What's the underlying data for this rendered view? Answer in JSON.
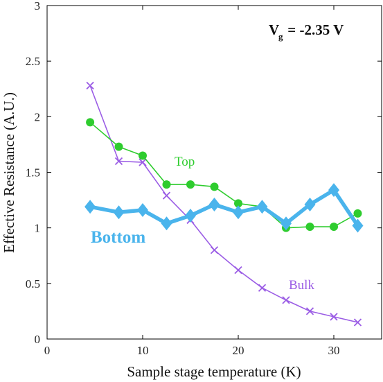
{
  "chart_data": {
    "type": "line",
    "xlabel": "Sample stage temperature (K)",
    "ylabel": "Effective Resistance (A.U.)",
    "xlim": [
      0,
      35
    ],
    "ylim": [
      0,
      3
    ],
    "xticks": [
      0,
      10,
      20,
      30
    ],
    "yticks": [
      0,
      0.5,
      1,
      1.5,
      2,
      2.5,
      3
    ],
    "xtick_labels": [
      "0",
      "10",
      "20",
      "30"
    ],
    "ytick_labels": [
      "0",
      "0.5",
      "1",
      "1.5",
      "2",
      "2.5",
      "3"
    ],
    "grid": false,
    "annotation": {
      "main": "V",
      "subscript": "g",
      "value": " = -2.35 V"
    },
    "series": [
      {
        "name": "Top",
        "color": "#2ecc2e",
        "marker": "circle",
        "x": [
          4.5,
          7.5,
          10,
          12.5,
          15,
          17.5,
          20,
          22.5,
          25,
          27.5,
          30,
          32.5
        ],
        "y": [
          1.95,
          1.73,
          1.65,
          1.39,
          1.39,
          1.37,
          1.22,
          1.19,
          1.0,
          1.01,
          1.01,
          1.13
        ]
      },
      {
        "name": "Bottom",
        "color": "#4ab4ec",
        "marker": "diamond",
        "x": [
          4.5,
          7.5,
          10,
          12.5,
          15,
          17.5,
          20,
          22.5,
          25,
          27.5,
          30,
          32.5
        ],
        "y": [
          1.19,
          1.14,
          1.16,
          1.04,
          1.11,
          1.21,
          1.14,
          1.19,
          1.04,
          1.21,
          1.34,
          1.02
        ]
      },
      {
        "name": "Bulk",
        "color": "#9b5de5",
        "marker": "x",
        "x": [
          4.5,
          7.5,
          10,
          12.5,
          15,
          17.5,
          20,
          22.5,
          25,
          27.5,
          30,
          32.5
        ],
        "y": [
          2.28,
          1.6,
          1.59,
          1.29,
          1.07,
          0.8,
          0.62,
          0.46,
          0.35,
          0.25,
          0.2,
          0.15
        ]
      }
    ]
  }
}
